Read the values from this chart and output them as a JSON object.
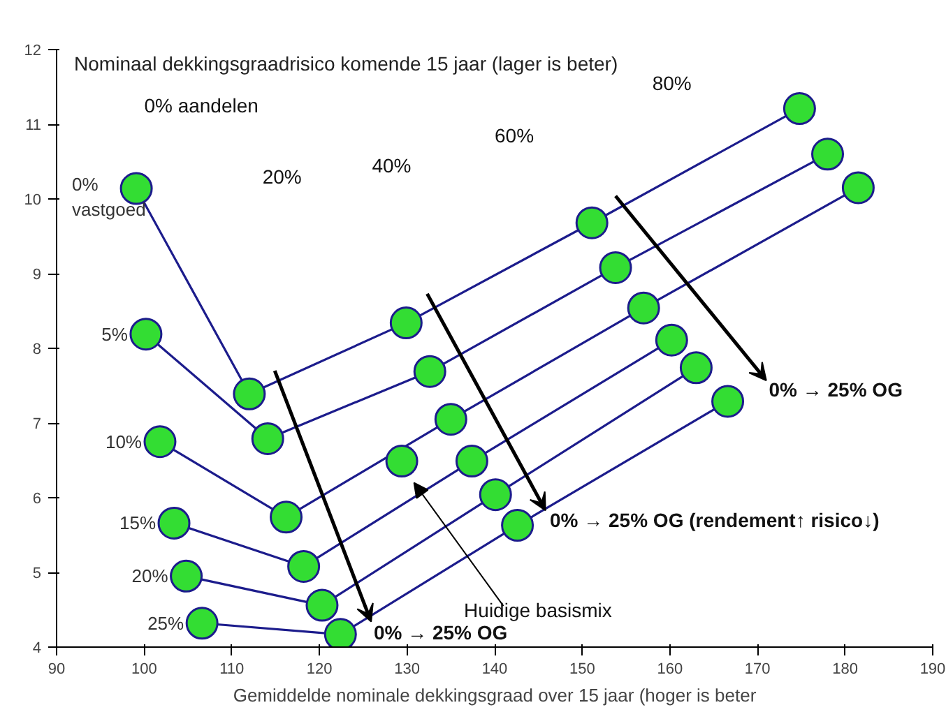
{
  "chart_data": {
    "type": "line",
    "ylabel": "Nominaal dekkingsgraadrisico komende 15 jaar (lager is beter)",
    "xlabel": "Gemiddelde nominale dekkingsgraad over 15 jaar (hoger is beter",
    "xlim": [
      90,
      190
    ],
    "xticks": [
      90,
      100,
      110,
      120,
      130,
      140,
      150,
      160,
      170,
      180,
      190
    ],
    "ylim": [
      4,
      12
    ],
    "yticks": [
      4,
      5,
      6,
      7,
      8,
      9,
      10,
      11,
      12
    ],
    "grid": false,
    "marker": "circle",
    "line_style": "solid",
    "series": [
      {
        "name": "0% vastgoed",
        "color": "#1c1c8c",
        "x": [
          99.1,
          112.0,
          129.9,
          151.1,
          174.8
        ],
        "values": [
          10.14,
          7.39,
          8.34,
          9.68,
          11.21
        ]
      },
      {
        "name": "5%",
        "color": "#1c1c8c",
        "x": [
          100.2,
          114.1,
          132.6,
          153.8,
          178.0
        ],
        "values": [
          8.19,
          6.79,
          7.69,
          9.08,
          10.6
        ]
      },
      {
        "name": "10%",
        "color": "#1c1c8c",
        "x": [
          101.8,
          116.2,
          135.0,
          157.0,
          181.5
        ],
        "values": [
          6.75,
          5.74,
          7.05,
          8.54,
          10.15
        ]
      },
      {
        "name": "15%",
        "color": "#1c1c8c",
        "x": [
          103.4,
          118.2,
          137.4,
          160.2
        ],
        "values": [
          5.66,
          5.08,
          6.49,
          8.11
        ]
      },
      {
        "name": "20%",
        "color": "#1c1c8c",
        "x": [
          104.8,
          120.3,
          140.1,
          163.0
        ],
        "values": [
          4.95,
          4.56,
          6.04,
          7.74
        ]
      },
      {
        "name": "25%",
        "color": "#1c1c8c",
        "x": [
          106.6,
          122.4,
          142.6,
          166.6
        ],
        "values": [
          4.32,
          4.17,
          5.63,
          7.29
        ]
      },
      {
        "type": "scatter",
        "color": "#1c1c8c",
        "x": [
          129.4
        ],
        "values": [
          6.49
        ]
      }
    ],
    "annotations": [
      "0% aandelen",
      "20%",
      "40%",
      "60%",
      "80%",
      "0% → 25% OG",
      "0% → 25% OG (rendement↑ risico↓)",
      "0% → 25% OG",
      "Huidige basismix"
    ]
  }
}
